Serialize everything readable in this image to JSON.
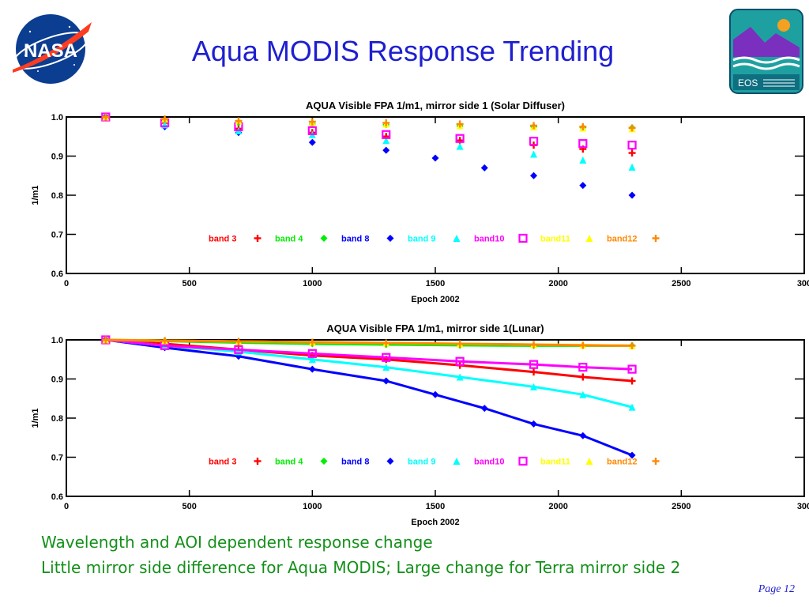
{
  "slide": {
    "title": "Aqua MODIS Response Trending",
    "bullets": [
      "Wavelength and AOI dependent response change",
      "Little mirror side difference for Aqua MODIS; Large change for Terra mirror side 2"
    ],
    "page": "Page 12",
    "logos": {
      "left": "NASA",
      "right": "EOS"
    }
  },
  "chart_data": [
    {
      "type": "scatter",
      "title": "AQUA Visible FPA 1/m1, mirror side 1 (Solar Diffuser)",
      "xlabel": "Epoch     2002",
      "ylabel": "1/m1",
      "xlim": [
        0,
        3000
      ],
      "ylim": [
        0.6,
        1.0
      ],
      "xticks": [
        "0",
        "500",
        "1000",
        "1500",
        "2000",
        "2500",
        "300"
      ],
      "yticks": [
        "0.6",
        "0.7",
        "0.8",
        "0.9",
        "1.0"
      ],
      "legend_position": "bottom",
      "series": [
        {
          "name": "band 3",
          "color": "#ff0000",
          "marker": "plus",
          "x": [
            160,
            400,
            700,
            1000,
            1300,
            1600,
            1900,
            2100,
            2300
          ],
          "y": [
            1.0,
            0.985,
            0.97,
            0.96,
            0.95,
            0.94,
            0.928,
            0.918,
            0.908
          ]
        },
        {
          "name": "band 4",
          "color": "#00ee00",
          "marker": "diamond",
          "x": [
            160,
            400,
            700,
            1000,
            1300,
            1600,
            1900,
            2100,
            2300
          ],
          "y": [
            1.0,
            0.99,
            0.985,
            0.982,
            0.98,
            0.977,
            0.975,
            0.973,
            0.972
          ]
        },
        {
          "name": "band 8",
          "color": "#0000ff",
          "marker": "diamond",
          "x": [
            160,
            400,
            700,
            1000,
            1300,
            1500,
            1700,
            1900,
            2100,
            2300
          ],
          "y": [
            1.0,
            0.975,
            0.96,
            0.935,
            0.915,
            0.895,
            0.87,
            0.85,
            0.825,
            0.8
          ]
        },
        {
          "name": "band 9",
          "color": "#00ffff",
          "marker": "triangle",
          "x": [
            160,
            400,
            700,
            1000,
            1300,
            1600,
            1900,
            2100,
            2300
          ],
          "y": [
            1.0,
            0.98,
            0.965,
            0.955,
            0.94,
            0.925,
            0.905,
            0.89,
            0.872
          ]
        },
        {
          "name": "band10",
          "color": "#ff00ff",
          "marker": "square",
          "x": [
            160,
            400,
            700,
            1000,
            1300,
            1600,
            1900,
            2100,
            2300
          ],
          "y": [
            1.0,
            0.985,
            0.975,
            0.965,
            0.955,
            0.945,
            0.938,
            0.932,
            0.928
          ]
        },
        {
          "name": "band11",
          "color": "#ffff00",
          "marker": "triangle",
          "x": [
            160,
            400,
            700,
            1000,
            1300,
            1600,
            1900,
            2100,
            2300
          ],
          "y": [
            1.0,
            0.995,
            0.99,
            0.986,
            0.982,
            0.978,
            0.975,
            0.972,
            0.97
          ]
        },
        {
          "name": "band12",
          "color": "#ff8800",
          "marker": "plus",
          "x": [
            160,
            400,
            700,
            1000,
            1300,
            1600,
            1900,
            2100,
            2300
          ],
          "y": [
            1.0,
            0.995,
            0.99,
            0.988,
            0.985,
            0.982,
            0.978,
            0.975,
            0.972
          ]
        }
      ]
    },
    {
      "type": "line",
      "title": "AQUA Visible FPA 1/m1, mirror side 1(Lunar)",
      "xlabel": "Epoch     2002",
      "ylabel": "1/m1",
      "xlim": [
        0,
        3000
      ],
      "ylim": [
        0.6,
        1.0
      ],
      "xticks": [
        "0",
        "500",
        "1000",
        "1500",
        "2000",
        "2500",
        "300"
      ],
      "yticks": [
        "0.6",
        "0.7",
        "0.8",
        "0.9",
        "1.0"
      ],
      "legend_position": "bottom",
      "series": [
        {
          "name": "band 3",
          "color": "#ff0000",
          "marker": "plus",
          "x": [
            160,
            400,
            700,
            1000,
            1300,
            1600,
            1900,
            2100,
            2300
          ],
          "y": [
            1.0,
            0.99,
            0.975,
            0.96,
            0.95,
            0.935,
            0.918,
            0.905,
            0.895
          ]
        },
        {
          "name": "band 4",
          "color": "#00ee00",
          "marker": "diamond",
          "x": [
            160,
            400,
            700,
            1000,
            1300,
            1600,
            1900,
            2100,
            2300
          ],
          "y": [
            1.0,
            0.997,
            0.993,
            0.99,
            0.988,
            0.986,
            0.985,
            0.985,
            0.985
          ]
        },
        {
          "name": "band 8",
          "color": "#0000ff",
          "marker": "diamond",
          "x": [
            160,
            400,
            700,
            1000,
            1300,
            1500,
            1700,
            1900,
            2100,
            2300
          ],
          "y": [
            1.0,
            0.98,
            0.958,
            0.925,
            0.895,
            0.86,
            0.825,
            0.785,
            0.755,
            0.705
          ]
        },
        {
          "name": "band 9",
          "color": "#00ffff",
          "marker": "triangle",
          "x": [
            160,
            400,
            700,
            1000,
            1300,
            1600,
            1900,
            2100,
            2300
          ],
          "y": [
            1.0,
            0.985,
            0.97,
            0.95,
            0.93,
            0.905,
            0.88,
            0.86,
            0.828
          ]
        },
        {
          "name": "band10",
          "color": "#ff00ff",
          "marker": "square",
          "x": [
            160,
            400,
            700,
            1000,
            1300,
            1600,
            1900,
            2100,
            2300
          ],
          "y": [
            1.0,
            0.985,
            0.975,
            0.965,
            0.955,
            0.945,
            0.937,
            0.93,
            0.925
          ]
        },
        {
          "name": "band11",
          "color": "#ffff00",
          "marker": "triangle",
          "x": [
            160,
            400,
            700,
            1000,
            1300,
            1600,
            1900,
            2100,
            2300
          ],
          "y": [
            1.0,
            0.998,
            0.996,
            0.994,
            0.992,
            0.99,
            0.988,
            0.987,
            0.985
          ]
        },
        {
          "name": "band12",
          "color": "#ff8800",
          "marker": "plus",
          "x": [
            160,
            400,
            700,
            1000,
            1300,
            1600,
            1900,
            2100,
            2300
          ],
          "y": [
            1.0,
            0.998,
            0.996,
            0.994,
            0.992,
            0.99,
            0.988,
            0.986,
            0.985
          ]
        }
      ]
    }
  ]
}
